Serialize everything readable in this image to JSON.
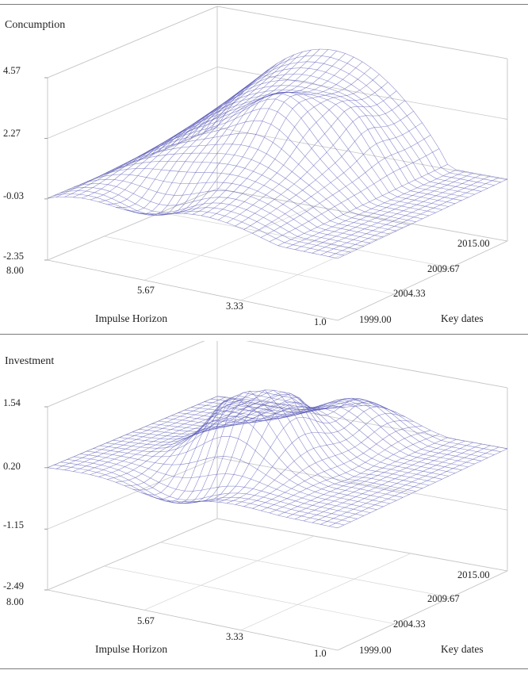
{
  "chart_data": [
    {
      "type": "surface",
      "title": "Concumption",
      "xlabel": "Impulse Horizon",
      "ylabel": "Key dates",
      "x_ticks": [
        "8.00",
        "5.67",
        "3.33",
        "1.0"
      ],
      "y_ticks": [
        "1999.00",
        "2004.33",
        "2009.67",
        "2015.00"
      ],
      "z_ticks": [
        "4.57",
        "2.27",
        "-0.03",
        "-2.35"
      ],
      "zlim": [
        -2.35,
        4.57
      ],
      "xlim": [
        1.0,
        8.0
      ],
      "ylim": [
        1999.0,
        2015.0
      ],
      "colors": {
        "positive": "#5a5ab8",
        "negative": "#c85050"
      }
    },
    {
      "type": "surface",
      "title": "Investment",
      "xlabel": "Impulse Horizon",
      "ylabel": "Key dates",
      "x_ticks": [
        "8.00",
        "5.67",
        "3.33",
        "1.0"
      ],
      "y_ticks": [
        "1999.00",
        "2004.33",
        "2009.67",
        "2015.00"
      ],
      "z_ticks": [
        "1.54",
        "0.20",
        "-1.15",
        "-2.49"
      ],
      "zlim": [
        -2.49,
        1.54
      ],
      "xlim": [
        1.0,
        8.0
      ],
      "ylim": [
        1999.0,
        2015.0
      ],
      "colors": {
        "positive": "#5a5ab8",
        "negative": "#c85050"
      }
    }
  ]
}
